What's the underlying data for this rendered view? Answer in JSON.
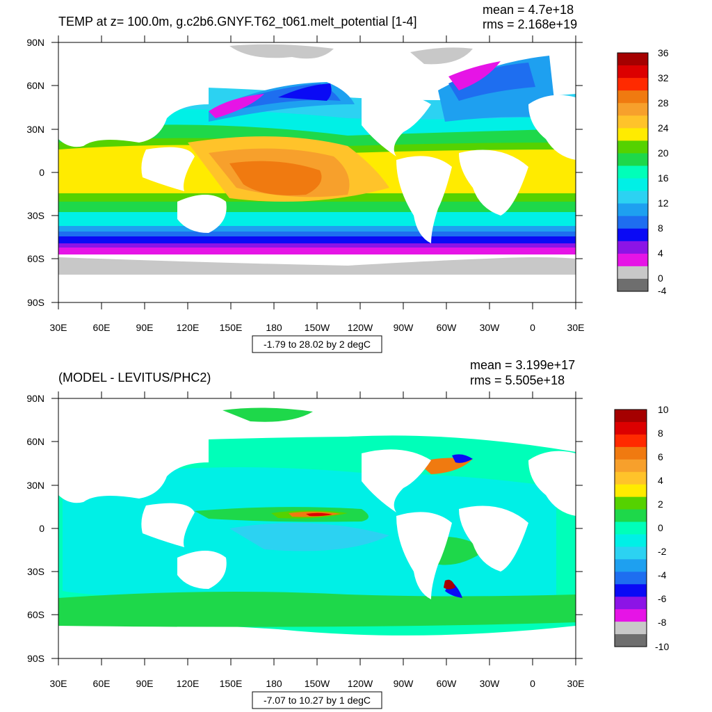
{
  "panels": [
    {
      "title": "TEMP at z= 100.0m, g.c2b6.GNYF.T62_t061.melt_potential [1-4]",
      "mean": "mean = 4.7e+18",
      "rms": "rms = 2.168e+19",
      "info": "-1.79 to 28.02 by 2 degC",
      "lat_labels": [
        "90N",
        "60N",
        "30N",
        "0",
        "30S",
        "60S",
        "90S"
      ],
      "lon_labels": [
        "30E",
        "60E",
        "90E",
        "120E",
        "150E",
        "180",
        "150W",
        "120W",
        "90W",
        "60W",
        "30W",
        "0",
        "30E"
      ],
      "colorbar": {
        "labels": [
          "36",
          "32",
          "28",
          "24",
          "20",
          "16",
          "12",
          "8",
          "4",
          "0",
          "-4"
        ],
        "colors": [
          "#a50000",
          "#dc0000",
          "#ff2a00",
          "#f07a10",
          "#f7a02c",
          "#ffc32a",
          "#ffeb00",
          "#55d200",
          "#1ed84a",
          "#00ffb9",
          "#00f0e6",
          "#2cd2f2",
          "#1ea0f0",
          "#1e6ef0",
          "#0a0af5",
          "#8c14e6",
          "#e614e6",
          "#c8c8c8",
          "#6e6e6e"
        ]
      }
    },
    {
      "title": "(MODEL - LEVITUS/PHC2)",
      "mean": "mean = 3.199e+17",
      "rms": "rms = 5.505e+18",
      "info": "-7.07 to 10.27 by 1 degC",
      "lat_labels": [
        "90N",
        "60N",
        "30N",
        "0",
        "30S",
        "60S",
        "90S"
      ],
      "lon_labels": [
        "30E",
        "60E",
        "90E",
        "120E",
        "150E",
        "180",
        "150W",
        "120W",
        "90W",
        "60W",
        "30W",
        "0",
        "30E"
      ],
      "colorbar": {
        "labels": [
          "10",
          "8",
          "6",
          "4",
          "2",
          "0",
          "-2",
          "-4",
          "-6",
          "-8",
          "-10"
        ],
        "colors": [
          "#a50000",
          "#dc0000",
          "#ff2a00",
          "#f07a10",
          "#f7a02c",
          "#ffc32a",
          "#ffeb00",
          "#55d200",
          "#1ed84a",
          "#00ffb9",
          "#00f0e6",
          "#2cd2f2",
          "#1ea0f0",
          "#1e6ef0",
          "#0a0af5",
          "#8c14e6",
          "#e614e6",
          "#c8c8c8",
          "#6e6e6e"
        ]
      }
    }
  ]
}
